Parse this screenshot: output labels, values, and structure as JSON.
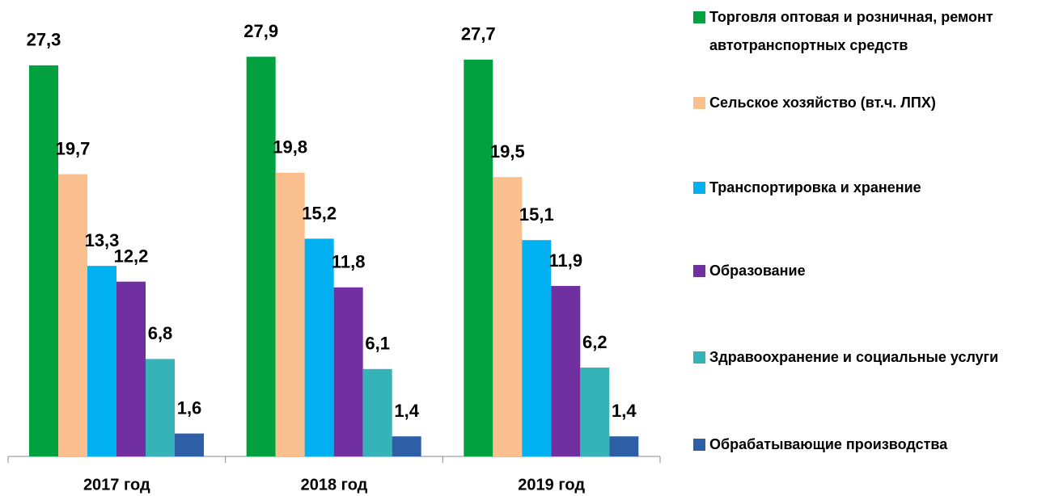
{
  "chart_data": {
    "type": "bar",
    "categories": [
      "2017 год",
      "2018 год",
      "2019 год"
    ],
    "ylim": [
      0,
      30
    ],
    "series": [
      {
        "name": "Торговля оптовая и розничная, ремонт автотранспортных средств",
        "color": "#00a13e",
        "values": [
          27.3,
          27.9,
          27.7
        ],
        "value_labels": [
          "27,3",
          "27,9",
          "27,7"
        ]
      },
      {
        "name": "Сельское хозяйство (вт.ч. ЛПХ)",
        "color": "#f9bf8f",
        "values": [
          19.7,
          19.8,
          19.5
        ],
        "value_labels": [
          "19,7",
          "19,8",
          "19,5"
        ]
      },
      {
        "name": "Транспортировка и хранение",
        "color": "#00b0f0",
        "values": [
          13.3,
          15.2,
          15.1
        ],
        "value_labels": [
          "13,3",
          "15,2",
          "15,1"
        ]
      },
      {
        "name": "Образование",
        "color": "#7030a0",
        "values": [
          12.2,
          11.8,
          11.9
        ],
        "value_labels": [
          "12,2",
          "11,8",
          "11,9"
        ]
      },
      {
        "name": "Здравоохранение и социальные услуги",
        "color": "#35b3b9",
        "values": [
          6.8,
          6.1,
          6.2
        ],
        "value_labels": [
          "6,8",
          "6,1",
          "6,2"
        ]
      },
      {
        "name": "Обрабатывающие производства",
        "color": "#2e5ea5",
        "values": [
          1.6,
          1.4,
          1.4
        ],
        "value_labels": [
          "1,6",
          "1,4",
          "1,4"
        ]
      }
    ]
  }
}
